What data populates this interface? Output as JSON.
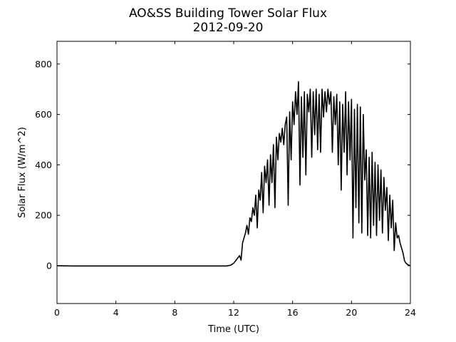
{
  "chart_data": {
    "type": "line",
    "title": "AO&SS Building Tower Solar Flux",
    "subtitle": "2012-09-20",
    "xlabel": "Time (UTC)",
    "ylabel": "Solar Flux (W/m^2)",
    "xlim": [
      0,
      24
    ],
    "ylim": [
      -150,
      890
    ],
    "xticks": [
      0,
      4,
      8,
      12,
      16,
      20,
      24
    ],
    "yticks": [
      0,
      200,
      400,
      600,
      800
    ],
    "grid": false,
    "series": [
      {
        "color": "#000000",
        "x": [
          0,
          1,
          2,
          4,
          6,
          8,
          10,
          11,
          11.5,
          11.8,
          12.0,
          12.2,
          12.4,
          12.5,
          12.6,
          12.7,
          12.8,
          12.9,
          13.0,
          13.1,
          13.2,
          13.3,
          13.4,
          13.5,
          13.6,
          13.7,
          13.8,
          13.9,
          14.0,
          14.1,
          14.2,
          14.3,
          14.4,
          14.5,
          14.6,
          14.7,
          14.8,
          14.9,
          15.0,
          15.1,
          15.2,
          15.3,
          15.4,
          15.5,
          15.6,
          15.7,
          15.8,
          15.9,
          16.0,
          16.1,
          16.2,
          16.3,
          16.4,
          16.5,
          16.6,
          16.7,
          16.8,
          16.9,
          17.0,
          17.1,
          17.2,
          17.3,
          17.4,
          17.5,
          17.6,
          17.7,
          17.8,
          17.9,
          18.0,
          18.1,
          18.2,
          18.3,
          18.4,
          18.5,
          18.6,
          18.7,
          18.8,
          18.9,
          19.0,
          19.1,
          19.2,
          19.3,
          19.4,
          19.5,
          19.6,
          19.7,
          19.8,
          19.9,
          20.0,
          20.1,
          20.2,
          20.3,
          20.4,
          20.5,
          20.6,
          20.7,
          20.8,
          20.9,
          21.0,
          21.1,
          21.2,
          21.3,
          21.4,
          21.5,
          21.6,
          21.7,
          21.8,
          21.9,
          22.0,
          22.1,
          22.2,
          22.3,
          22.4,
          22.5,
          22.6,
          22.7,
          22.8,
          22.9,
          23.0,
          23.1,
          23.2,
          23.3,
          23.4,
          23.5,
          23.6,
          23.7,
          23.8,
          23.9,
          24.0
        ],
        "y": [
          0,
          -1,
          -1,
          -1,
          -1,
          -1,
          -1,
          -1,
          -1,
          2,
          10,
          25,
          40,
          22,
          90,
          110,
          130,
          160,
          125,
          190,
          175,
          230,
          200,
          280,
          150,
          300,
          260,
          370,
          210,
          395,
          330,
          420,
          240,
          440,
          330,
          480,
          230,
          510,
          420,
          525,
          490,
          545,
          480,
          560,
          590,
          240,
          610,
          420,
          650,
          560,
          690,
          600,
          730,
          320,
          670,
          430,
          690,
          360,
          680,
          610,
          700,
          430,
          690,
          520,
          700,
          460,
          680,
          450,
          700,
          590,
          690,
          610,
          700,
          640,
          690,
          450,
          670,
          560,
          680,
          400,
          650,
          300,
          640,
          450,
          690,
          360,
          650,
          420,
          660,
          110,
          620,
          230,
          640,
          170,
          630,
          130,
          600,
          340,
          460,
          120,
          430,
          110,
          450,
          160,
          410,
          120,
          400,
          180,
          380,
          130,
          350,
          220,
          310,
          100,
          280,
          150,
          260,
          60,
          170,
          110,
          120,
          90,
          70,
          50,
          20,
          10,
          5,
          2,
          0
        ]
      }
    ]
  }
}
